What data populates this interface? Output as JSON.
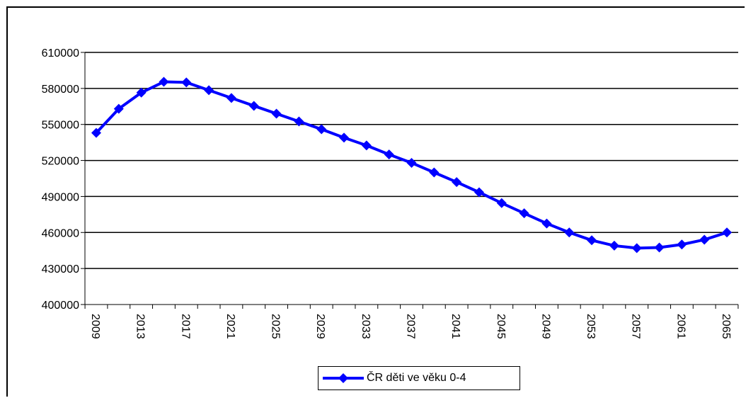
{
  "chart_data": {
    "type": "line",
    "title": "",
    "xlabel": "",
    "ylabel": "",
    "ylim": [
      400000,
      610000
    ],
    "ytick_step": 30000,
    "y_ticks": [
      "400000",
      "430000",
      "460000",
      "490000",
      "520000",
      "550000",
      "580000",
      "610000"
    ],
    "x": [
      2009,
      2011,
      2013,
      2015,
      2017,
      2019,
      2021,
      2023,
      2025,
      2027,
      2029,
      2031,
      2033,
      2035,
      2037,
      2039,
      2041,
      2043,
      2045,
      2047,
      2049,
      2051,
      2053,
      2055,
      2057,
      2059,
      2061,
      2063,
      2065
    ],
    "x_tick_labels": [
      "2009",
      "2013",
      "2017",
      "2021",
      "2025",
      "2029",
      "2033",
      "2037",
      "2041",
      "2045",
      "2049",
      "2053",
      "2057",
      "2061",
      "2065"
    ],
    "grid": true,
    "legend_position": "bottom",
    "series": [
      {
        "name": "ČR děti ve věku 0-4",
        "color": "#0000ff",
        "marker": "diamond",
        "values": [
          543000,
          563000,
          576500,
          585500,
          585000,
          578500,
          572000,
          565500,
          559000,
          552500,
          546000,
          539000,
          532500,
          525000,
          518000,
          510000,
          502000,
          493500,
          484500,
          476000,
          467500,
          460000,
          453500,
          449000,
          447000,
          447500,
          450000,
          454000,
          460000
        ]
      }
    ]
  }
}
